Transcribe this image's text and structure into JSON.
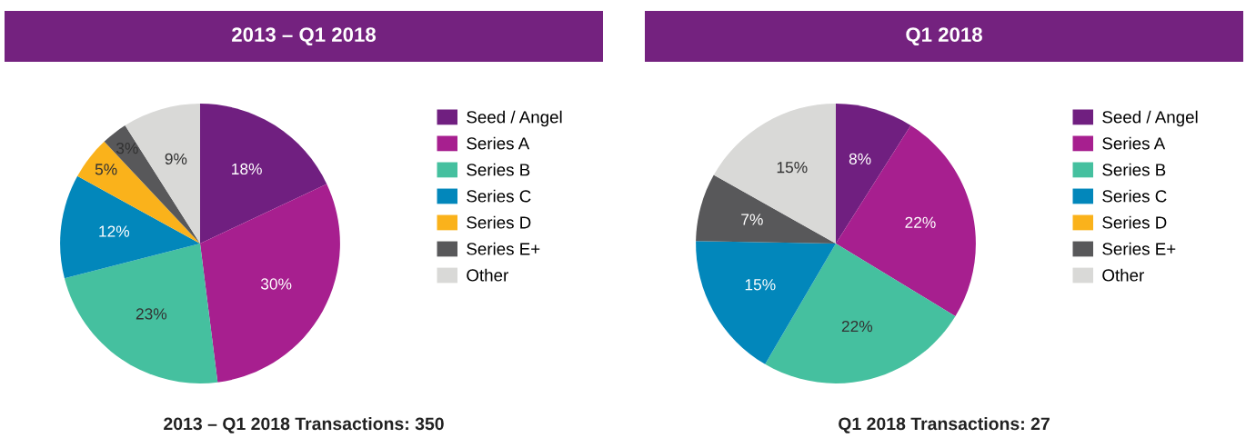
{
  "chart_data": [
    {
      "type": "pie",
      "title": "2013 – Q1 2018",
      "categories": [
        "Seed / Angel",
        "Series A",
        "Series B",
        "Series C",
        "Series D",
        "Series E+",
        "Other"
      ],
      "values": [
        18,
        30,
        23,
        12,
        5,
        3,
        9
      ],
      "value_labels": [
        "18%",
        "30%",
        "23%",
        "12%",
        "5%",
        "3%",
        "9%"
      ],
      "colors": [
        "#701f80",
        "#a71f8f",
        "#45c09f",
        "#0287bb",
        "#fab21b",
        "#58585a",
        "#d9d9d7"
      ],
      "legend": "right",
      "annotations": [
        "2013 – Q1 2018 Transactions: 350"
      ]
    },
    {
      "type": "pie",
      "title": "Q1 2018",
      "categories": [
        "Seed / Angel",
        "Series A",
        "Series B",
        "Series C",
        "Series D",
        "Series E+",
        "Other"
      ],
      "values": [
        8,
        22,
        22,
        15,
        0,
        7,
        15
      ],
      "value_labels": [
        "8%",
        "22%",
        "22%",
        "15%",
        null,
        "7%",
        "15%"
      ],
      "colors": [
        "#701f80",
        "#a71f8f",
        "#45c09f",
        "#0287bb",
        "#fab21b",
        "#58585a",
        "#d9d9d7"
      ],
      "legend": "right",
      "annotations": [
        "Q1 2018 Transactions: 27"
      ]
    }
  ]
}
